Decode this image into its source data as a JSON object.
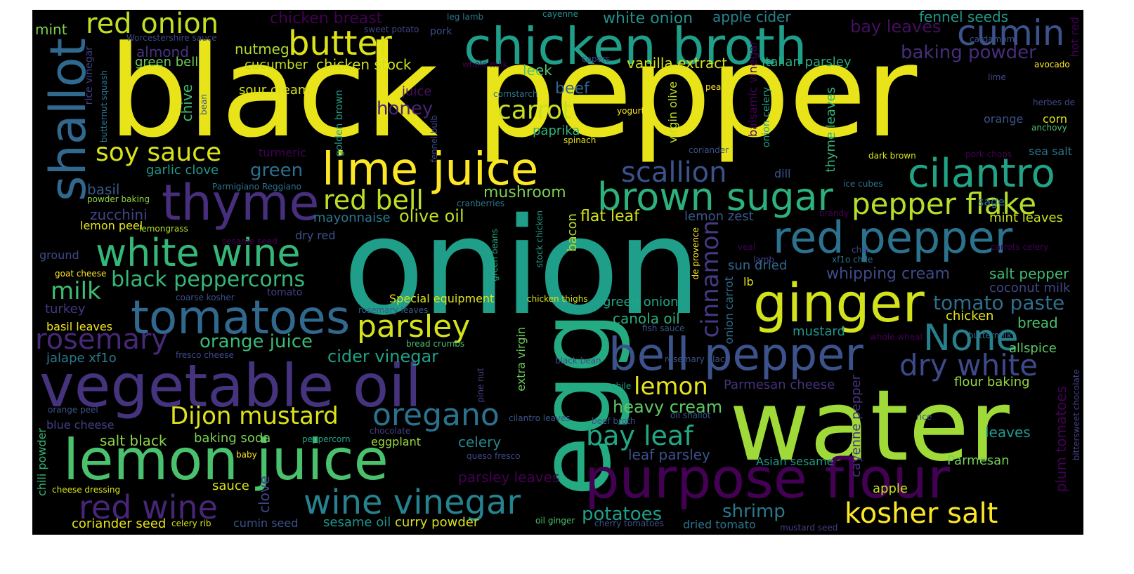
{
  "words": [
    {
      "text": "black pepper",
      "color": "#e8e419"
    },
    {
      "text": "onion",
      "color": "#1f9e89"
    },
    {
      "text": "water",
      "color": "#a0da39"
    },
    {
      "text": "egg",
      "color": "#25ab82"
    },
    {
      "text": "chicken broth",
      "color": "#1f9e89"
    },
    {
      "text": "vegetable oil",
      "color": "#46337e"
    },
    {
      "text": "lemon juice",
      "color": "#4ac16d"
    },
    {
      "text": "purpose flour",
      "color": "#440154"
    },
    {
      "text": "shallot",
      "color": "#31688e"
    },
    {
      "text": "thyme",
      "color": "#472f7d"
    },
    {
      "text": "ginger",
      "color": "#d2e21b"
    },
    {
      "text": "red pepper",
      "color": "#2c728e"
    },
    {
      "text": "lime juice",
      "color": "#fde725"
    },
    {
      "text": "tomatoes",
      "color": "#31688e"
    },
    {
      "text": "brown sugar",
      "color": "#2db27d"
    },
    {
      "text": "bell pepper",
      "color": "#3b528b"
    },
    {
      "text": "cumin",
      "color": "#3b528b"
    },
    {
      "text": "cilantro",
      "color": "#20a386"
    },
    {
      "text": "white wine",
      "color": "#35b779"
    },
    {
      "text": "butter",
      "color": "#dde318"
    },
    {
      "text": "red onion",
      "color": "#c2df23"
    },
    {
      "text": "red wine",
      "color": "#482576"
    },
    {
      "text": "wine vinegar",
      "color": "#26828e"
    },
    {
      "text": "kosher salt",
      "color": "#fde725"
    },
    {
      "text": "pepper flake",
      "color": "#b5de2b"
    },
    {
      "text": "parsley",
      "color": "#d5e21a"
    },
    {
      "text": "oregano",
      "color": "#2c728e"
    },
    {
      "text": "scallion",
      "color": "#3b528b"
    },
    {
      "text": "rosemary",
      "color": "#482878"
    },
    {
      "text": "None",
      "color": "#27808e"
    },
    {
      "text": "dry white",
      "color": "#3e4989"
    },
    {
      "text": "red bell",
      "color": "#bddf26"
    },
    {
      "text": "carrot",
      "color": "#c8e020"
    },
    {
      "text": "soy sauce",
      "color": "#dae319"
    },
    {
      "text": "bay leaf",
      "color": "#22a785"
    },
    {
      "text": "Dijon mustard",
      "color": "#dde318"
    },
    {
      "text": "lemon",
      "color": "#e5e419"
    },
    {
      "text": "cinnamon",
      "color": "#443a83"
    },
    {
      "text": "milk",
      "color": "#3fbc73"
    },
    {
      "text": "black peppercorns",
      "color": "#35b779"
    },
    {
      "text": "tomato paste",
      "color": "#2e6e8e"
    },
    {
      "text": "orange juice",
      "color": "#3aba76"
    },
    {
      "text": "cider vinegar",
      "color": "#1fa187"
    },
    {
      "text": "heavy cream",
      "color": "#5ec962"
    },
    {
      "text": "potatoes",
      "color": "#1f9e89"
    },
    {
      "text": "shrimp",
      "color": "#2a788e"
    },
    {
      "text": "baking powder",
      "color": "#472d7b"
    },
    {
      "text": "bay leaves",
      "color": "#470e61"
    },
    {
      "text": "honey",
      "color": "#482475"
    },
    {
      "text": "green",
      "color": "#2d708e"
    },
    {
      "text": "olive oil",
      "color": "#c0df25"
    },
    {
      "text": "mushroom",
      "color": "#7ad151"
    },
    {
      "text": "whipping cream",
      "color": "#3e4989"
    },
    {
      "text": "fennel seeds",
      "color": "#1f9a8a"
    },
    {
      "text": "chicken breast",
      "color": "#440154"
    },
    {
      "text": "white onion",
      "color": "#21918c"
    },
    {
      "text": "apple cider",
      "color": "#25858e"
    },
    {
      "text": "mint",
      "color": "#7fd34e"
    },
    {
      "text": "almond",
      "color": "#463480"
    },
    {
      "text": "nutmeg",
      "color": "#b0dd2f"
    },
    {
      "text": "green bell",
      "color": "#6ccd5a"
    },
    {
      "text": "cucumber",
      "color": "#c2df23"
    },
    {
      "text": "chicken stock",
      "color": "#d0e11c"
    },
    {
      "text": "vanilla extract",
      "color": "#d5e21a"
    },
    {
      "text": "Italian parsley",
      "color": "#29af7f"
    },
    {
      "text": "leek",
      "color": "#4ec36b"
    },
    {
      "text": "sour cream",
      "color": "#d8e219"
    },
    {
      "text": "juice",
      "color": "#471063"
    },
    {
      "text": "beef",
      "color": "#31688e"
    },
    {
      "text": "chive",
      "color": "#3fbc73"
    },
    {
      "text": "paprika",
      "color": "#31b57b"
    },
    {
      "text": "turmeric",
      "color": "#440154"
    },
    {
      "text": "garlic clove",
      "color": "#1f988b"
    },
    {
      "text": "basil",
      "color": "#38598c"
    },
    {
      "text": "zucchini",
      "color": "#414487"
    },
    {
      "text": "lemon peel",
      "color": "#e5e419"
    },
    {
      "text": "flat leaf",
      "color": "#d2e21b"
    },
    {
      "text": "lemon zest",
      "color": "#38588c"
    },
    {
      "text": "mayonnaise",
      "color": "#2a788e"
    },
    {
      "text": "dry red",
      "color": "#3b528b"
    },
    {
      "text": "bacon",
      "color": "#b8de29"
    },
    {
      "text": "sun dried",
      "color": "#31688e"
    },
    {
      "text": "salt pepper",
      "color": "#3dbc74"
    },
    {
      "text": "coconut milk",
      "color": "#3f4788"
    },
    {
      "text": "ground",
      "color": "#3e4989"
    },
    {
      "text": "turkey",
      "color": "#443983"
    },
    {
      "text": "basil leaves",
      "color": "#f1e51d"
    },
    {
      "text": "Special equipment",
      "color": "#e0e318"
    },
    {
      "text": "green onion",
      "color": "#21a685"
    },
    {
      "text": "canola oil",
      "color": "#29af7f"
    },
    {
      "text": "mustard",
      "color": "#1f968b"
    },
    {
      "text": "chicken",
      "color": "#dfe318"
    },
    {
      "text": "bread",
      "color": "#4ac16d"
    },
    {
      "text": "allspice",
      "color": "#5ec962"
    },
    {
      "text": "jalape xf1o",
      "color": "#2a788e"
    },
    {
      "text": "blue cheese",
      "color": "#424086"
    },
    {
      "text": "salt black",
      "color": "#8bd646"
    },
    {
      "text": "baking soda",
      "color": "#7ad151"
    },
    {
      "text": "eggplant",
      "color": "#9bd93c"
    },
    {
      "text": "celery",
      "color": "#25858e"
    },
    {
      "text": "leaf parsley",
      "color": "#3b528b"
    },
    {
      "text": "Parmesan cheese",
      "color": "#46327e"
    },
    {
      "text": "Asian sesame",
      "color": "#1e9c89"
    },
    {
      "text": "Parmesan",
      "color": "#73d056"
    },
    {
      "text": "leaves",
      "color": "#1f988b"
    },
    {
      "text": "flour baking",
      "color": "#95d840"
    },
    {
      "text": "apple",
      "color": "#c8e020"
    },
    {
      "text": "sauce",
      "color": "#dae319"
    },
    {
      "text": "clove",
      "color": "#3f4788"
    },
    {
      "text": "parsley leaves",
      "color": "#440154"
    },
    {
      "text": "coriander seed",
      "color": "#e7e419"
    },
    {
      "text": "cumin seed",
      "color": "#3b528b"
    },
    {
      "text": "sesame oil",
      "color": "#1f968b"
    },
    {
      "text": "curry powder",
      "color": "#d8e219"
    },
    {
      "text": "dried tomato",
      "color": "#2c728e"
    },
    {
      "text": "chili powder",
      "color": "#35b779"
    },
    {
      "text": "plum tomatoes",
      "color": "#440154"
    },
    {
      "text": "cayenne pepper",
      "color": "#46337e"
    },
    {
      "text": "onion carrot",
      "color": "#2f6c8e"
    },
    {
      "text": "onion celery",
      "color": "#1f9e89"
    },
    {
      "text": "thyme leaves",
      "color": "#31b57b"
    },
    {
      "text": "balsamic vinegar",
      "color": "#440154"
    },
    {
      "text": "virgin olive",
      "color": "#c0df25"
    },
    {
      "text": "extra virgin",
      "color": "#6ccd5a"
    },
    {
      "text": "golden brown",
      "color": "#1f9e89"
    },
    {
      "text": "rice vinegar",
      "color": "#424086"
    },
    {
      "text": "hot red",
      "color": "#440154"
    },
    {
      "text": "sea salt",
      "color": "#2c728e"
    },
    {
      "text": "corn",
      "color": "#dde318"
    },
    {
      "text": "orange",
      "color": "#3b528b"
    },
    {
      "text": "sage",
      "color": "#2c728e"
    },
    {
      "text": "mint leaves",
      "color": "#cae11f"
    },
    {
      "text": "dill",
      "color": "#3b528b"
    },
    {
      "text": "lb",
      "color": "#e5e419"
    },
    {
      "text": "Worcestershire sauce",
      "color": "#3f4788"
    },
    {
      "text": "sweet potato",
      "color": "#404588"
    },
    {
      "text": "pork",
      "color": "#3e4a89"
    },
    {
      "text": "leg lamb",
      "color": "#2a788e"
    },
    {
      "text": "cayenne",
      "color": "#21918c"
    },
    {
      "text": "cardamom",
      "color": "#3b528b"
    },
    {
      "text": "avocado",
      "color": "#fde725"
    },
    {
      "text": "whole milk",
      "color": "#440154"
    },
    {
      "text": "capers",
      "color": "#3e4989"
    },
    {
      "text": "pea",
      "color": "#fde725"
    },
    {
      "text": "lime",
      "color": "#3f4788"
    },
    {
      "text": "cornstarch",
      "color": "#2c728e"
    },
    {
      "text": "yogurt",
      "color": "#fde725"
    },
    {
      "text": "spinach",
      "color": "#e5e419"
    },
    {
      "text": "coriander",
      "color": "#3b528b"
    },
    {
      "text": "dark brown",
      "color": "#d8e219"
    },
    {
      "text": "pork chops",
      "color": "#440154"
    },
    {
      "text": "ice cubes",
      "color": "#2c728e"
    },
    {
      "text": "herbes de",
      "color": "#3e4989"
    },
    {
      "text": "anchovy",
      "color": "#4ac16d"
    },
    {
      "text": "Parmigiano Reggiano",
      "color": "#2c728e"
    },
    {
      "text": "powder baking",
      "color": "#8fd744"
    },
    {
      "text": "cranberries",
      "color": "#2a788e"
    },
    {
      "text": "lemongrass",
      "color": "#b5de2b"
    },
    {
      "text": "brandy",
      "color": "#440154"
    },
    {
      "text": "sesame seed",
      "color": "#440154"
    },
    {
      "text": "veal",
      "color": "#440154"
    },
    {
      "text": "chili",
      "color": "#3e4989"
    },
    {
      "text": "xf1o chile",
      "color": "#2c728e"
    },
    {
      "text": "lamb",
      "color": "#424086"
    },
    {
      "text": "carrots celery",
      "color": "#440154"
    },
    {
      "text": "goat cheese",
      "color": "#fde725"
    },
    {
      "text": "coarse kosher",
      "color": "#3b528b"
    },
    {
      "text": "tomato",
      "color": "#424086"
    },
    {
      "text": "chicken thighs",
      "color": "#dde318"
    },
    {
      "text": "rosemary leaves",
      "color": "#38598c"
    },
    {
      "text": "bread crumbs",
      "color": "#4ac16d"
    },
    {
      "text": "fish sauce",
      "color": "#38598c"
    },
    {
      "text": "buttermilk",
      "color": "#2c728e"
    },
    {
      "text": "whole wheat",
      "color": "#440154"
    },
    {
      "text": "fresco cheese",
      "color": "#3e4989"
    },
    {
      "text": "black bean",
      "color": "#3e4989"
    },
    {
      "text": "rosemary black",
      "color": "#3b528b"
    },
    {
      "text": "chile",
      "color": "#1f9e89"
    },
    {
      "text": "orange peel",
      "color": "#3b528b"
    },
    {
      "text": "chocolate",
      "color": "#424086"
    },
    {
      "text": "peppercorn",
      "color": "#20a386"
    },
    {
      "text": "cilantro leaves",
      "color": "#3b528b"
    },
    {
      "text": "beef broth",
      "color": "#3b528b"
    },
    {
      "text": "oil shallot",
      "color": "#38598c"
    },
    {
      "text": "rice",
      "color": "#3b528b"
    },
    {
      "text": "baby",
      "color": "#fde725"
    },
    {
      "text": "queso fresco",
      "color": "#3e4989"
    },
    {
      "text": "cheese dressing",
      "color": "#dae319"
    },
    {
      "text": "celery rib",
      "color": "#d8e219"
    },
    {
      "text": "oil ginger",
      "color": "#4ac16d"
    },
    {
      "text": "cherry tomatoes",
      "color": "#3b528b"
    },
    {
      "text": "mustard seed",
      "color": "#424086"
    },
    {
      "text": "bittersweet chocolate",
      "color": "#424086"
    },
    {
      "text": "butternut squash",
      "color": "#2c728e"
    },
    {
      "text": "bean",
      "color": "#38598c"
    },
    {
      "text": "fennel bulb",
      "color": "#3e4989"
    },
    {
      "text": "stock chicken",
      "color": "#1f9e89"
    },
    {
      "text": "green beans",
      "color": "#25ab82"
    },
    {
      "text": "de provence",
      "color": "#fde725"
    },
    {
      "text": "pine nut",
      "color": "#424086"
    }
  ]
}
